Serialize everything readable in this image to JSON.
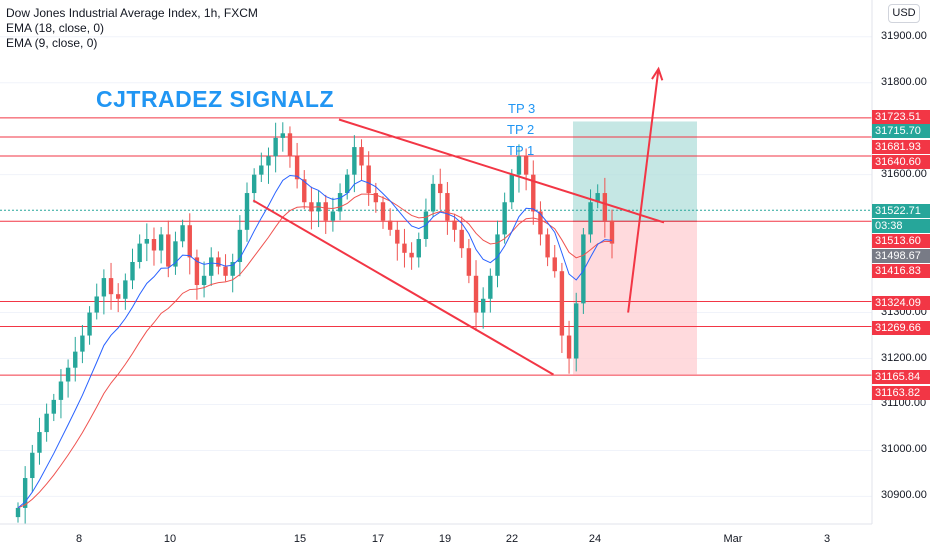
{
  "legend": {
    "title": "Dow Jones Industrial Average Index, 1h, FXCM",
    "ema1": "EMA (18, close, 0)",
    "ema2": "EMA (9, close, 0)"
  },
  "currency_button": "USD",
  "brand_text": "CJTRADEZ SIGNALZ",
  "tp_labels": [
    "TP 3",
    "TP 2",
    "TP 1"
  ],
  "colors": {
    "up": "#26a69a",
    "down": "#ef5350",
    "level": "#f23645",
    "ema18": "#ef5350",
    "ema9": "#2962ff",
    "profit_zone": "#b2dfdb",
    "loss_zone": "#ffcdd2",
    "brand": "#2196f3"
  },
  "chart_data": {
    "type": "candlestick",
    "symbol": "Dow Jones Industrial Average Index",
    "timeframe": "1h",
    "source": "FXCM",
    "ylim": [
      30840,
      31980
    ],
    "y_ticks": [
      30900.0,
      31000.0,
      31100.0,
      31200.0,
      31300.0,
      31600.0,
      31800.0,
      31900.0
    ],
    "x_ticks": [
      "8",
      "10",
      "15",
      "17",
      "19",
      "22",
      "24",
      "Mar",
      "3"
    ],
    "horizontal_levels": [
      31723.51,
      31681.93,
      31640.6,
      31498.67,
      31324.09,
      31269.66,
      31163.82
    ],
    "price_labels": [
      {
        "value": "31723.51",
        "kind": "level"
      },
      {
        "value": "31715.70",
        "kind": "target"
      },
      {
        "value": "31681.93",
        "kind": "level"
      },
      {
        "value": "31640.60",
        "kind": "level"
      },
      {
        "value": "31522.71",
        "kind": "current"
      },
      {
        "value": "03:38",
        "kind": "countdown"
      },
      {
        "value": "31513.60",
        "kind": "level"
      },
      {
        "value": "31498.67",
        "kind": "entry"
      },
      {
        "value": "31416.83",
        "kind": "level"
      },
      {
        "value": "31324.09",
        "kind": "level"
      },
      {
        "value": "31269.66",
        "kind": "level"
      },
      {
        "value": "31165.84",
        "kind": "stop"
      },
      {
        "value": "31163.82",
        "kind": "level"
      }
    ],
    "position": {
      "entry": 31498.67,
      "target": 31715.7,
      "stop": 31165.84
    },
    "wedge": {
      "upper": [
        [
          16,
          31720
        ],
        [
          26.5,
          31496
        ]
      ],
      "lower": [
        [
          13.2,
          31544
        ],
        [
          23,
          31165
        ]
      ]
    },
    "arrow": {
      "from": [
        25.2,
        31300
      ],
      "to": [
        26.3,
        31830
      ]
    },
    "closes": [
      30875,
      30940,
      30995,
      31040,
      31080,
      31110,
      31150,
      31180,
      31215,
      31250,
      31300,
      31335,
      31375,
      31340,
      31330,
      31370,
      31410,
      31450,
      31460,
      31435,
      31470,
      31400,
      31455,
      31490,
      31420,
      31360,
      31380,
      31420,
      31400,
      31380,
      31410,
      31480,
      31560,
      31600,
      31620,
      31640,
      31680,
      31690,
      31640,
      31590,
      31540,
      31520,
      31540,
      31500,
      31520,
      31560,
      31600,
      31660,
      31620,
      31560,
      31540,
      31500,
      31480,
      31450,
      31430,
      31420,
      31460,
      31520,
      31580,
      31560,
      31500,
      31480,
      31440,
      31380,
      31300,
      31330,
      31380,
      31470,
      31540,
      31600,
      31640,
      31600,
      31520,
      31470,
      31420,
      31390,
      31250,
      31200,
      31320,
      31470,
      31540,
      31560,
      31500,
      31450
    ]
  }
}
